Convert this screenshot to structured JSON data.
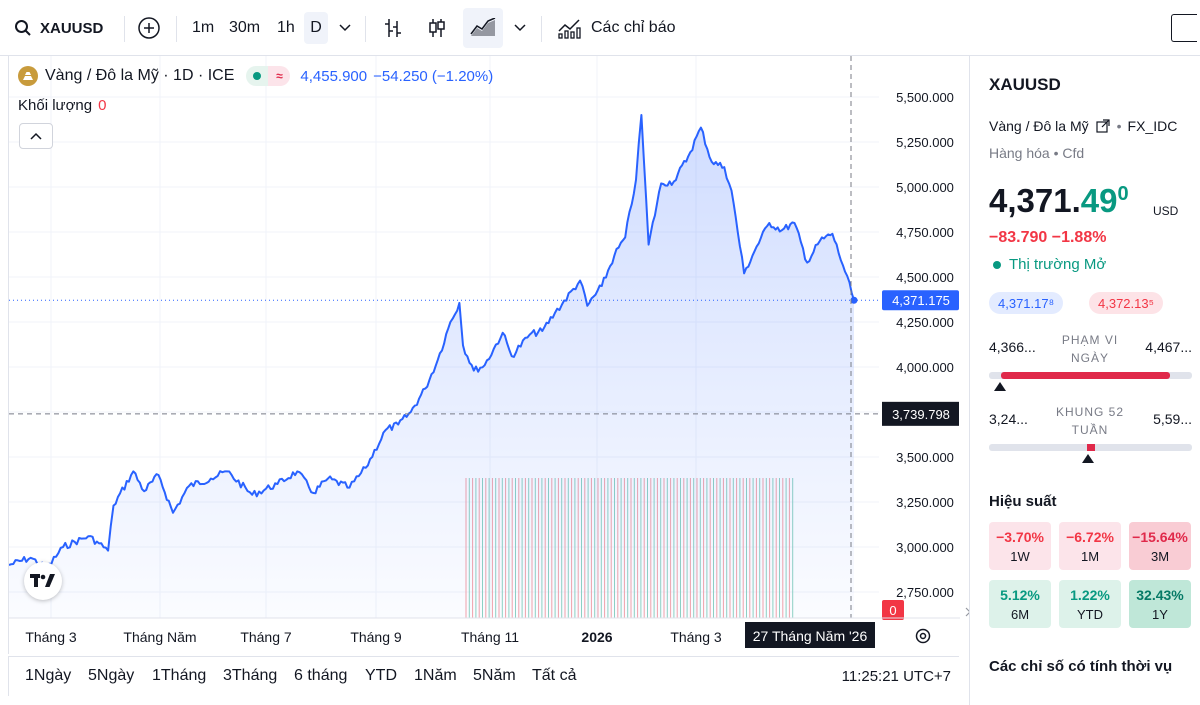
{
  "toolbar": {
    "symbol": "XAUUSD",
    "intervals": [
      "1m",
      "30m",
      "1h",
      "D"
    ],
    "active_interval": "D",
    "indicators_label": "Các chỉ báo"
  },
  "legend": {
    "title": "Vàng / Đô la Mỹ · 1D · ICE",
    "price": "4,455.900",
    "change": "−54.250 (−1.20%)",
    "volume_label": "Khối lượng",
    "volume_value": "0"
  },
  "price_axis": {
    "ticks": [
      "5,500.000",
      "5,250.000",
      "5,000.000",
      "4,750.000",
      "4,500.000",
      "4,250.000",
      "4,000.000",
      "3,750.000",
      "3,500.000",
      "3,250.000",
      "3,000.000",
      "2,750.000"
    ],
    "last_price_label": "4,371.175",
    "crosshair_price_label": "3,739.798",
    "volume_tag": "0"
  },
  "time_axis": {
    "labels": [
      "Tháng 3",
      "Tháng Năm",
      "Tháng 7",
      "Tháng 9",
      "Tháng 11",
      "2026",
      "Tháng 3"
    ],
    "crosshair_label": "27 Tháng Năm '26"
  },
  "range_buttons": [
    "1Ngày",
    "5Ngày",
    "1Tháng",
    "3Tháng",
    "6 tháng",
    "YTD",
    "1Năm",
    "5Năm",
    "Tất cả"
  ],
  "clock": "11:25:21 UTC+7",
  "panel": {
    "symbol": "XAUUSD",
    "description": "Vàng / Đô la Mỹ",
    "exchange": "FX_IDC",
    "category": "Hàng hóa • Cfd",
    "price_main": "4,371.",
    "price_dec": "49",
    "price_sup": "0",
    "currency": "USD",
    "change": "−83.790 −1.88%",
    "status": "Thị trường Mở",
    "bid": "4,371.17⁸",
    "ask": "4,372.13⁵",
    "day_range": {
      "low": "4,366...",
      "label": "PHẠM VI NGÀY",
      "high": "4,467..."
    },
    "week52_range": {
      "low": "3,24...",
      "label": "KHUNG 52 TUẦN",
      "high": "5,59..."
    },
    "performance_title": "Hiệu suất",
    "performance": [
      {
        "value": "−3.70%",
        "label": "1W"
      },
      {
        "value": "−6.72%",
        "label": "1M"
      },
      {
        "value": "−15.64%",
        "label": "3M"
      },
      {
        "value": "5.12%",
        "label": "6M"
      },
      {
        "value": "1.22%",
        "label": "YTD"
      },
      {
        "value": "32.43%",
        "label": "1Y"
      }
    ],
    "technicals_title": "Các chỉ số có tính thời vụ"
  },
  "colors": {
    "line": "#2962ff",
    "up": "#089981",
    "down": "#f23645",
    "grid": "#f0f3fa"
  },
  "chart_data": {
    "type": "area",
    "title": "Vàng / Đô la Mỹ · 1D · ICE",
    "ylim": [
      2650,
      5600
    ],
    "x": [
      "2025-02-12",
      "2025-02-24",
      "2025-03-05",
      "2025-03-14",
      "2025-03-28",
      "2025-04-03",
      "2025-04-08",
      "2025-04-11",
      "2025-04-22",
      "2025-04-28",
      "2025-05-06",
      "2025-05-14",
      "2025-05-23",
      "2025-06-04",
      "2025-06-13",
      "2025-06-27",
      "2025-07-11",
      "2025-07-22",
      "2025-07-31",
      "2025-08-08",
      "2025-08-20",
      "2025-08-29",
      "2025-09-09",
      "2025-09-16",
      "2025-09-23",
      "2025-10-01",
      "2025-10-08",
      "2025-10-15",
      "2025-10-20",
      "2025-10-22",
      "2025-10-28",
      "2025-11-03",
      "2025-11-13",
      "2025-11-18",
      "2025-11-28",
      "2025-12-05",
      "2025-12-12",
      "2025-12-26",
      "2025-12-30",
      "2026-01-07",
      "2026-01-14",
      "2026-01-20",
      "2026-01-26",
      "2026-01-29",
      "2026-02-02",
      "2026-02-09",
      "2026-02-16",
      "2026-02-24",
      "2026-03-03",
      "2026-03-09",
      "2026-03-16",
      "2026-03-20",
      "2026-03-27",
      "2026-04-03",
      "2026-04-10",
      "2026-04-17",
      "2026-04-24",
      "2026-05-01",
      "2026-05-08",
      "2026-05-15",
      "2026-05-22",
      "2026-05-27"
    ],
    "y": [
      2900,
      2940,
      2880,
      3000,
      3060,
      3020,
      2980,
      3230,
      3420,
      3310,
      3400,
      3190,
      3340,
      3380,
      3420,
      3290,
      3350,
      3420,
      3300,
      3380,
      3330,
      3440,
      3650,
      3680,
      3750,
      3880,
      4040,
      4250,
      4356,
      4120,
      3980,
      4010,
      4190,
      4060,
      4180,
      4200,
      4300,
      4480,
      4340,
      4450,
      4620,
      4720,
      5040,
      5400,
      4680,
      5020,
      5030,
      5170,
      5330,
      5140,
      5110,
      4980,
      4520,
      4670,
      4800,
      4760,
      4800,
      4580,
      4700,
      4740,
      4530,
      4371
    ]
  }
}
